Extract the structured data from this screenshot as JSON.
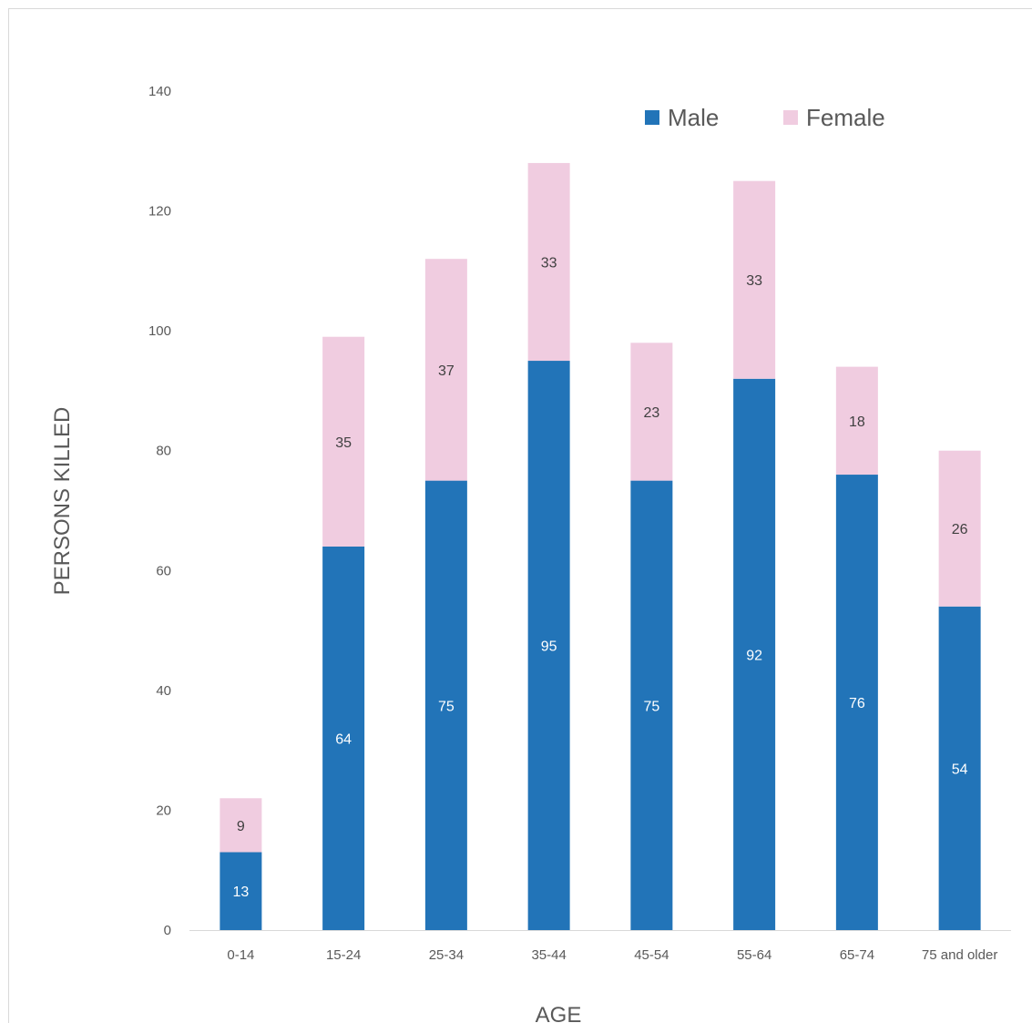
{
  "chart_data": {
    "type": "bar",
    "stacked": true,
    "title": "",
    "xlabel": "AGE",
    "ylabel": "PERSONS KILLED",
    "categories": [
      "0-14",
      "15-24",
      "25-34",
      "35-44",
      "45-54",
      "55-64",
      "65-74",
      "75 and older"
    ],
    "series": [
      {
        "name": "Male",
        "color": "#2274b8",
        "label_color": "#ffffff",
        "values": [
          13,
          64,
          75,
          95,
          75,
          92,
          76,
          54
        ]
      },
      {
        "name": "Female",
        "color": "#f0cce0",
        "label_color": "#404040",
        "values": [
          9,
          35,
          37,
          33,
          23,
          33,
          18,
          26
        ]
      }
    ],
    "ylim": [
      0,
      140
    ],
    "yticks": [
      0,
      20,
      40,
      60,
      80,
      100,
      120,
      140
    ],
    "grid": false,
    "legend_position": "top-right",
    "data_labels": true
  }
}
